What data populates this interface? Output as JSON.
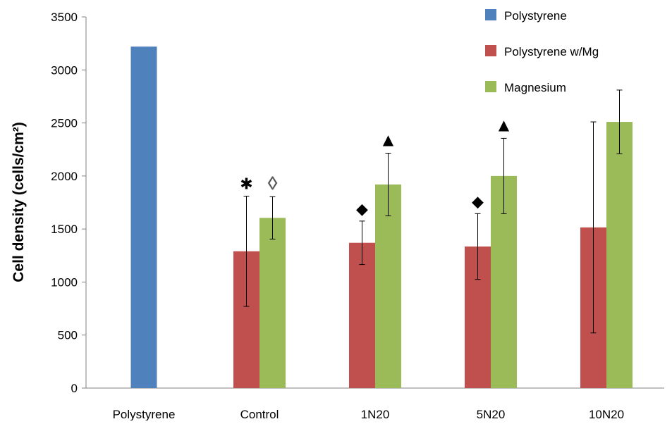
{
  "chart_data": {
    "type": "bar",
    "title": "",
    "xlabel": "",
    "ylabel": "Cell density (cells/cm²)",
    "ylim": [
      0,
      3500
    ],
    "yticks": [
      0,
      500,
      1000,
      1500,
      2000,
      2500,
      3000,
      3500
    ],
    "categories": [
      "Polystyrene",
      "Control",
      "1N20",
      "5N20",
      "10N20"
    ],
    "series": [
      {
        "name": "Polystyrene",
        "color": "#4F81BD",
        "values": [
          3220,
          null,
          null,
          null,
          null
        ],
        "errors": [
          null,
          null,
          null,
          null,
          null
        ]
      },
      {
        "name": "Polystyrene w/Mg",
        "color": "#C0504D",
        "values": [
          null,
          1290,
          1370,
          1335,
          1515
        ],
        "errors": [
          null,
          520,
          205,
          310,
          995
        ]
      },
      {
        "name": "Magnesium",
        "color": "#9BBB59",
        "values": [
          null,
          1605,
          1920,
          2000,
          2510
        ],
        "errors": [
          null,
          200,
          295,
          355,
          300
        ]
      }
    ],
    "legend_position": "top-right",
    "grid": false,
    "annotations": [
      {
        "category": "Control",
        "series": "Polystyrene w/Mg",
        "symbol": "✱"
      },
      {
        "category": "Control",
        "series": "Magnesium",
        "symbol": "◊"
      },
      {
        "category": "1N20",
        "series": "Polystyrene w/Mg",
        "symbol": "◆"
      },
      {
        "category": "1N20",
        "series": "Magnesium",
        "symbol": "▲"
      },
      {
        "category": "5N20",
        "series": "Polystyrene w/Mg",
        "symbol": "◆"
      },
      {
        "category": "5N20",
        "series": "Magnesium",
        "symbol": "▲"
      }
    ]
  }
}
